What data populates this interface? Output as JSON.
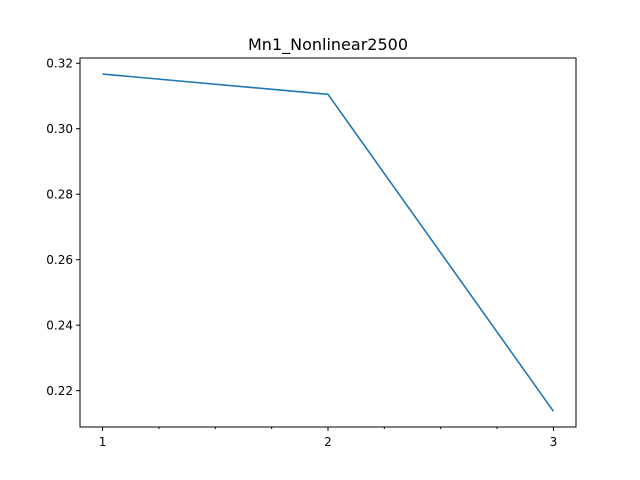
{
  "chart_data": {
    "type": "line",
    "title": "Mn1_Nonlinear2500",
    "xlabel": "",
    "ylabel": "",
    "x": [
      1,
      2,
      3
    ],
    "series": [
      {
        "values": [
          0.3167,
          0.3105,
          0.2137
        ],
        "color": "#1f77b4"
      }
    ],
    "xlim": [
      0.9,
      3.1
    ],
    "ylim": [
      0.2089,
      0.3216
    ],
    "x_major_ticks": [
      1,
      2,
      3
    ],
    "x_major_tick_labels": [
      "1",
      "2",
      "3"
    ],
    "x_minor_ticks": [
      1.25,
      1.5,
      1.75,
      2.25,
      2.5,
      2.75
    ],
    "y_ticks": [
      0.22,
      0.24,
      0.26,
      0.28,
      0.3,
      0.32
    ],
    "y_tick_labels": [
      "0.22",
      "0.24",
      "0.26",
      "0.28",
      "0.30",
      "0.32"
    ],
    "grid": false,
    "legend": "none"
  }
}
